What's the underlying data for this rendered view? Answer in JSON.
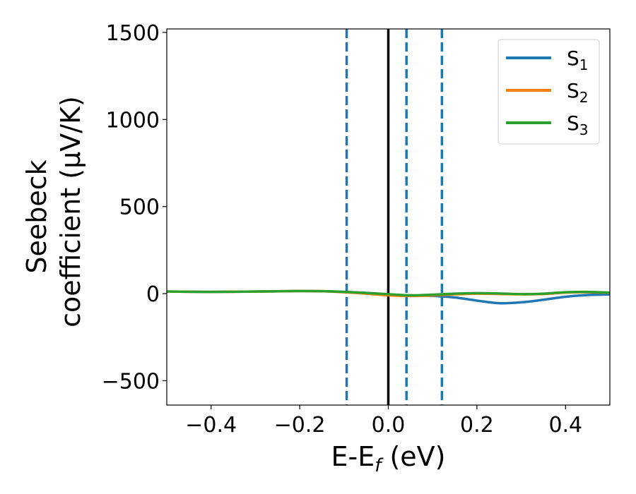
{
  "chart_data": {
    "type": "line",
    "title": "",
    "xlabel": {
      "main": "E-E",
      "sub": "f",
      "tail": " (eV)"
    },
    "ylabel": {
      "line1": "Seebeck",
      "line2": "coefficient  (μV/K)"
    },
    "xlim": [
      -0.5,
      0.5
    ],
    "ylim": [
      -640,
      1520
    ],
    "xticks": [
      -0.4,
      -0.2,
      0.0,
      0.2,
      0.4
    ],
    "xtick_labels": [
      "−0.4",
      "−0.2",
      "0.0",
      "0.2",
      "0.4"
    ],
    "yticks": [
      -500,
      0,
      500,
      1000,
      1500
    ],
    "ytick_labels": [
      "−500",
      "0",
      "500",
      "1000",
      "1500"
    ],
    "grid": false,
    "legend_position": "top-right",
    "vertical_lines": [
      {
        "x": -0.094,
        "style": "dashed",
        "color": "#1f77b4"
      },
      {
        "x": 0.0,
        "style": "solid",
        "color": "#000000"
      },
      {
        "x": 0.041,
        "style": "dashed",
        "color": "#1f77b4"
      },
      {
        "x": 0.121,
        "style": "dashed",
        "color": "#1f77b4"
      }
    ],
    "series": [
      {
        "name": "S",
        "sub": "1",
        "color": "#1f77b4",
        "x": [
          -0.5,
          -0.4,
          -0.3,
          -0.2,
          -0.15,
          -0.1,
          -0.05,
          0.0,
          0.05,
          0.1,
          0.15,
          0.2,
          0.25,
          0.3,
          0.35,
          0.4,
          0.45,
          0.5
        ],
        "y": [
          12,
          10,
          12,
          15,
          14,
          10,
          4,
          -5,
          -10,
          -13,
          -22,
          -40,
          -55,
          -50,
          -35,
          -18,
          -8,
          -5
        ]
      },
      {
        "name": "S",
        "sub": "2",
        "color": "#ff7f0e",
        "x": [
          -0.5,
          -0.4,
          -0.3,
          -0.2,
          -0.15,
          -0.1,
          -0.05,
          0.0,
          0.05,
          0.1,
          0.15,
          0.2,
          0.25,
          0.3,
          0.35,
          0.4,
          0.45,
          0.5
        ],
        "y": [
          12,
          10,
          12,
          15,
          14,
          8,
          0,
          -10,
          -14,
          -10,
          -4,
          0,
          -2,
          -4,
          -2,
          6,
          8,
          5
        ]
      },
      {
        "name": "S",
        "sub": "3",
        "color": "#2ca02c",
        "x": [
          -0.5,
          -0.4,
          -0.3,
          -0.2,
          -0.15,
          -0.1,
          -0.05,
          0.0,
          0.05,
          0.1,
          0.15,
          0.2,
          0.25,
          0.3,
          0.35,
          0.4,
          0.45,
          0.5
        ],
        "y": [
          12,
          10,
          12,
          15,
          14,
          10,
          4,
          -3,
          -10,
          -6,
          0,
          3,
          1,
          -3,
          0,
          8,
          10,
          6
        ]
      }
    ]
  }
}
